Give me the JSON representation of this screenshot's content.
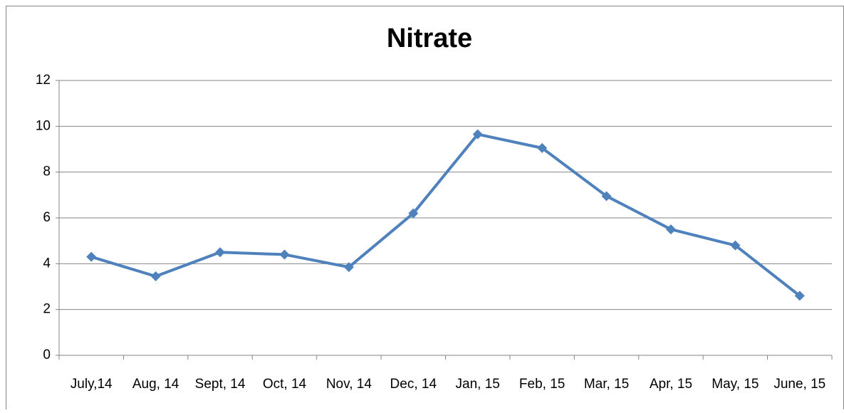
{
  "chart_data": {
    "type": "line",
    "title": "Nitrate",
    "categories": [
      "July,14",
      "Aug, 14",
      "Sept, 14",
      "Oct, 14",
      "Nov, 14",
      "Dec, 14",
      "Jan, 15",
      "Feb, 15",
      "Mar, 15",
      "Apr, 15",
      "May, 15",
      "June, 15"
    ],
    "series": [
      {
        "name": "Nitrate",
        "color": "#4f81bd",
        "values": [
          4.3,
          3.45,
          4.5,
          4.4,
          3.85,
          6.2,
          9.65,
          9.05,
          6.95,
          5.5,
          4.8,
          2.6
        ]
      }
    ],
    "ylim": [
      0,
      12
    ],
    "yticks": [
      0,
      2,
      4,
      6,
      8,
      10,
      12
    ],
    "grid": true
  }
}
